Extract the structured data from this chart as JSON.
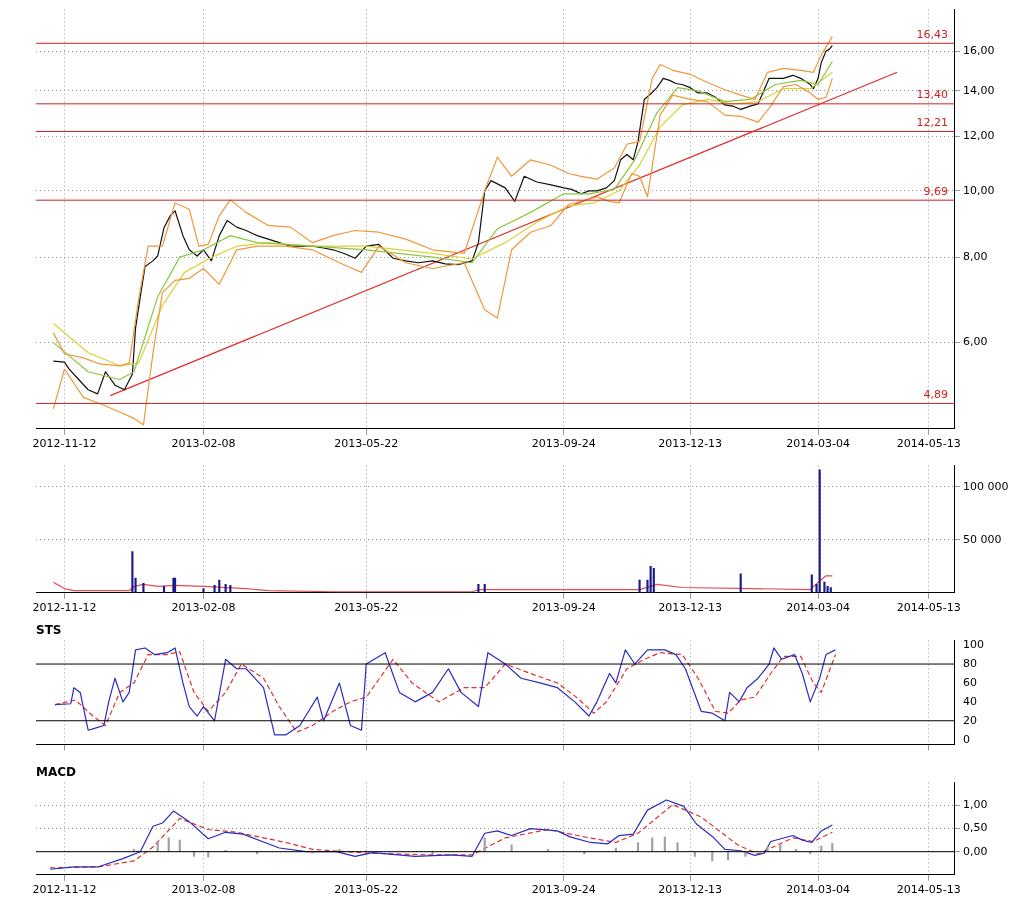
{
  "chart_data": [
    {
      "type": "line",
      "log": "y",
      "grid": true,
      "xlim": [
        "2012-10-25",
        "2014-05-29"
      ],
      "ylim": [
        4.49,
        18.4
      ],
      "xticks": [
        "2012-11-12",
        "2013-02-08",
        "2013-05-22",
        "2013-09-24",
        "2013-12-13",
        "2014-03-04",
        "2014-05-13"
      ],
      "yticks": [
        {
          "value": 6,
          "label": "6,00"
        },
        {
          "value": 8,
          "label": "8,00"
        },
        {
          "value": 10,
          "label": "10,00"
        },
        {
          "value": 12,
          "label": "12,00"
        },
        {
          "value": 14,
          "label": "14,00"
        },
        {
          "value": 16,
          "label": "16,00"
        }
      ],
      "ref_lines": [
        {
          "axis": "y",
          "value": 16.43,
          "label": "16,43",
          "color": "#cc2222"
        },
        {
          "axis": "y",
          "value": 13.4,
          "label": "13,40",
          "color": "#cc2222"
        },
        {
          "axis": "y",
          "value": 12.21,
          "label": "12,21",
          "color": "#cc2222"
        },
        {
          "axis": "y",
          "value": 9.69,
          "label": "9,69",
          "color": "#cc2222"
        },
        {
          "axis": "y",
          "value": 4.89,
          "label": "4,89",
          "color": "#cc2222"
        }
      ],
      "series": [
        {
          "color": "#f0973a",
          "x": [
            "2012-11-05",
            "2012-11-12",
            "2012-11-24",
            "2012-12-05",
            "2012-12-17",
            "2012-12-23",
            "2012-12-29",
            "2013-01-04",
            "2013-01-13",
            "2013-01-21",
            "2013-01-30",
            "2013-02-05",
            "2013-02-11",
            "2013-02-18",
            "2013-02-25",
            "2013-03-07",
            "2013-03-21",
            "2013-04-04",
            "2013-04-18",
            "2013-05-01",
            "2013-05-15",
            "2013-05-30",
            "2013-06-16",
            "2013-07-03",
            "2013-07-23",
            "2013-08-05",
            "2013-08-13",
            "2013-08-22",
            "2013-09-03",
            "2013-09-16",
            "2013-09-27",
            "2013-10-05",
            "2013-10-15",
            "2013-10-26",
            "2013-11-03",
            "2013-11-11",
            "2013-11-19",
            "2013-11-24",
            "2013-12-02",
            "2013-12-13",
            "2013-12-24",
            "2014-01-04",
            "2014-01-14",
            "2014-01-23",
            "2014-01-31",
            "2014-02-10",
            "2014-02-21",
            "2014-03-01",
            "2014-03-06",
            "2014-03-13"
          ],
          "values": [
            6.2,
            5.78,
            5.7,
            5.58,
            5.55,
            5.6,
            6.96,
            8.3,
            8.3,
            9.6,
            9.4,
            8.3,
            8.35,
            9.2,
            9.7,
            9.3,
            8.9,
            8.85,
            8.4,
            8.6,
            8.75,
            8.7,
            8.5,
            8.2,
            8.1,
            10.0,
            11.2,
            10.5,
            11.1,
            10.9,
            10.6,
            10.5,
            10.4,
            10.8,
            11.7,
            11.8,
            14.6,
            15.3,
            15.0,
            14.8,
            14.4,
            14.05,
            13.8,
            13.6,
            14.9,
            15.1,
            15.0,
            14.9,
            15.8,
            16.8
          ]
        },
        {
          "color": "#f0973a",
          "x": [
            "2012-11-05",
            "2012-11-12",
            "2012-11-24",
            "2012-12-05",
            "2012-12-17",
            "2012-12-26",
            "2013-01-01",
            "2013-01-07",
            "2013-01-13",
            "2013-01-21",
            "2013-01-30",
            "2013-02-08",
            "2013-02-18",
            "2013-03-01",
            "2013-03-14",
            "2013-04-01",
            "2013-04-18",
            "2013-05-05",
            "2013-05-19",
            "2013-05-30",
            "2013-06-16",
            "2013-07-03",
            "2013-07-23",
            "2013-08-05",
            "2013-08-13",
            "2013-08-22",
            "2013-09-03",
            "2013-09-16",
            "2013-09-27",
            "2013-10-05",
            "2013-10-15",
            "2013-10-23",
            "2013-10-29",
            "2013-11-06",
            "2013-11-11",
            "2013-11-16",
            "2013-11-24",
            "2013-12-02",
            "2013-12-13",
            "2013-12-24",
            "2014-01-04",
            "2014-01-14",
            "2014-01-25",
            "2014-02-02",
            "2014-02-10",
            "2014-02-18",
            "2014-02-27",
            "2014-03-04",
            "2014-03-09",
            "2014-03-13"
          ],
          "values": [
            4.8,
            5.49,
            4.99,
            4.88,
            4.75,
            4.65,
            4.55,
            5.78,
            7.1,
            7.4,
            7.45,
            7.7,
            7.3,
            8.2,
            8.3,
            8.3,
            8.2,
            7.85,
            7.6,
            8.3,
            7.85,
            7.7,
            7.85,
            6.7,
            6.52,
            8.2,
            8.7,
            8.9,
            9.55,
            9.65,
            9.8,
            9.65,
            9.6,
            10.6,
            10.5,
            9.8,
            12.9,
            13.8,
            13.6,
            13.5,
            12.9,
            12.85,
            12.6,
            13.3,
            14.2,
            14.3,
            13.9,
            13.6,
            13.7,
            14.6
          ]
        },
        {
          "color": "#8cc63f",
          "x": [
            "2012-11-05",
            "2012-11-27",
            "2012-12-17",
            "2012-12-26",
            "2013-01-10",
            "2013-01-24",
            "2013-02-08",
            "2013-02-25",
            "2013-03-14",
            "2013-04-18",
            "2013-05-22",
            "2013-07-03",
            "2013-07-28",
            "2013-08-13",
            "2013-09-03",
            "2013-09-24",
            "2013-10-10",
            "2013-10-26",
            "2013-11-08",
            "2013-11-22",
            "2013-12-05",
            "2013-12-18",
            "2014-01-04",
            "2014-01-20",
            "2014-02-05",
            "2014-02-21",
            "2014-03-04",
            "2014-03-13"
          ],
          "values": [
            6.0,
            5.44,
            5.3,
            5.44,
            7.0,
            8.0,
            8.2,
            8.6,
            8.4,
            8.3,
            8.2,
            8.0,
            7.85,
            8.8,
            9.3,
            9.9,
            9.9,
            10.05,
            11.1,
            13.0,
            14.15,
            14.0,
            13.5,
            13.6,
            14.3,
            14.5,
            14.3,
            15.45
          ]
        },
        {
          "color": "#d9d23a",
          "x": [
            "2012-11-05",
            "2012-11-27",
            "2012-12-17",
            "2012-12-29",
            "2013-01-13",
            "2013-01-27",
            "2013-02-11",
            "2013-03-01",
            "2013-03-21",
            "2013-04-18",
            "2013-05-22",
            "2013-07-03",
            "2013-07-28",
            "2013-08-18",
            "2013-09-07",
            "2013-09-27",
            "2013-10-13",
            "2013-10-29",
            "2013-11-11",
            "2013-11-24",
            "2013-12-08",
            "2013-12-24",
            "2014-01-09",
            "2014-01-25",
            "2014-02-10",
            "2014-02-27",
            "2014-03-13"
          ],
          "values": [
            6.4,
            5.8,
            5.55,
            5.6,
            6.8,
            7.6,
            7.95,
            8.3,
            8.4,
            8.3,
            8.3,
            8.1,
            7.95,
            8.4,
            9.0,
            9.5,
            9.6,
            10.0,
            10.9,
            12.4,
            13.35,
            13.6,
            13.4,
            13.5,
            14.1,
            14.1,
            14.9
          ]
        },
        {
          "color": "#111111",
          "x": [
            "2012-11-05",
            "2012-11-12",
            "2012-11-15",
            "2012-11-21",
            "2012-11-27",
            "2012-12-03",
            "2012-12-08",
            "2012-12-14",
            "2012-12-20",
            "2012-12-25",
            "2012-12-27",
            "2012-12-30",
            "2013-01-02",
            "2013-01-07",
            "2013-01-10",
            "2013-01-14",
            "2013-01-18",
            "2013-01-21",
            "2013-01-26",
            "2013-01-30",
            "2013-02-04",
            "2013-02-08",
            "2013-02-13",
            "2013-02-18",
            "2013-02-23",
            "2013-03-01",
            "2013-03-07",
            "2013-03-14",
            "2013-03-21",
            "2013-03-28",
            "2013-04-04",
            "2013-04-11",
            "2013-04-18",
            "2013-04-25",
            "2013-05-01",
            "2013-05-08",
            "2013-05-15",
            "2013-05-22",
            "2013-05-30",
            "2013-06-08",
            "2013-06-16",
            "2013-06-24",
            "2013-07-03",
            "2013-07-11",
            "2013-07-19",
            "2013-07-28",
            "2013-08-01",
            "2013-08-05",
            "2013-08-09",
            "2013-08-18",
            "2013-08-24",
            "2013-08-30",
            "2013-09-07",
            "2013-09-16",
            "2013-09-24",
            "2013-09-29",
            "2013-10-05",
            "2013-10-10",
            "2013-10-15",
            "2013-10-21",
            "2013-10-26",
            "2013-10-30",
            "2013-11-03",
            "2013-11-07",
            "2013-11-10",
            "2013-11-14",
            "2013-11-18",
            "2013-11-22",
            "2013-11-26",
            "2013-11-30",
            "2013-12-04",
            "2013-12-08",
            "2013-12-13",
            "2013-12-18",
            "2013-12-24",
            "2013-12-29",
            "2014-01-04",
            "2014-01-09",
            "2014-01-14",
            "2014-01-20",
            "2014-01-25",
            "2014-01-28",
            "2014-02-01",
            "2014-02-05",
            "2014-02-10",
            "2014-02-16",
            "2014-02-21",
            "2014-02-27",
            "2014-03-01",
            "2014-03-04",
            "2014-03-06",
            "2014-03-09",
            "2014-03-11",
            "2014-03-13"
          ],
          "values": [
            5.64,
            5.62,
            5.49,
            5.3,
            5.12,
            5.05,
            5.44,
            5.2,
            5.12,
            5.4,
            6.3,
            7.0,
            7.75,
            7.9,
            8.03,
            8.83,
            9.2,
            9.35,
            8.6,
            8.2,
            8.03,
            8.2,
            7.9,
            8.6,
            9.05,
            8.85,
            8.75,
            8.6,
            8.5,
            8.4,
            8.3,
            8.3,
            8.3,
            8.25,
            8.2,
            8.1,
            7.97,
            8.3,
            8.35,
            7.97,
            7.9,
            7.85,
            7.9,
            7.82,
            7.8,
            7.9,
            8.4,
            10.0,
            10.35,
            10.1,
            9.65,
            10.5,
            10.3,
            10.2,
            10.1,
            10.05,
            9.9,
            10.0,
            10.0,
            10.1,
            10.35,
            11.1,
            11.3,
            11.1,
            11.8,
            13.6,
            13.85,
            14.15,
            14.6,
            14.5,
            14.35,
            14.3,
            14.15,
            13.9,
            13.9,
            13.7,
            13.35,
            13.3,
            13.15,
            13.3,
            13.4,
            13.9,
            14.6,
            14.6,
            14.6,
            14.75,
            14.6,
            14.3,
            14.1,
            14.6,
            15.4,
            16.0,
            16.1,
            16.3
          ]
        },
        {
          "color": "#e03030",
          "x": [
            "2012-12-11",
            "2014-04-23"
          ],
          "values": [
            5.02,
            14.9
          ]
        }
      ]
    },
    {
      "type": "bar",
      "grid": true,
      "xlim": [
        "2012-10-25",
        "2014-05-29"
      ],
      "ylim": [
        0,
        120000
      ],
      "yticks": [
        {
          "value": 50000,
          "label": "50 000"
        },
        {
          "value": 100000,
          "label": "100 000"
        }
      ],
      "xticks": [
        "2012-11-12",
        "2013-02-08",
        "2013-05-22",
        "2013-09-24",
        "2013-12-13",
        "2014-03-04",
        "2014-05-13"
      ],
      "series": [
        {
          "color": "#1a1a8c",
          "x": [
            "2012-12-25",
            "2012-12-27",
            "2013-01-01",
            "2013-01-14",
            "2013-01-20",
            "2013-01-21",
            "2013-02-08",
            "2013-02-15",
            "2013-02-18",
            "2013-02-22",
            "2013-02-25",
            "2013-08-01",
            "2013-08-05",
            "2013-11-11",
            "2013-11-16",
            "2013-11-18",
            "2013-11-20",
            "2014-01-14",
            "2014-02-28",
            "2014-03-03",
            "2014-03-05",
            "2014-03-08",
            "2014-03-10",
            "2014-03-12"
          ],
          "values": [
            39000,
            14000,
            9000,
            6000,
            14000,
            14000,
            4000,
            7000,
            12000,
            8000,
            7000,
            8000,
            8000,
            12000,
            12000,
            25000,
            23000,
            18000,
            17000,
            8000,
            116000,
            10000,
            6000,
            5000
          ]
        },
        {
          "type": "line",
          "color": "#e05050",
          "x": [
            "2012-11-05",
            "2012-11-12",
            "2012-11-18",
            "2012-12-23",
            "2012-12-26",
            "2013-01-01",
            "2013-01-10",
            "2013-01-21",
            "2013-02-08",
            "2013-03-07",
            "2013-03-21",
            "2013-05-01",
            "2013-07-28",
            "2013-08-01",
            "2013-09-29",
            "2013-11-11",
            "2013-11-22",
            "2013-12-08",
            "2014-01-20",
            "2014-02-27",
            "2014-03-04",
            "2014-03-09",
            "2014-03-13"
          ],
          "values": [
            10000,
            4000,
            2000,
            2000,
            6000,
            8000,
            6000,
            7000,
            6000,
            4000,
            2000,
            1000,
            1000,
            3000,
            3000,
            3000,
            8000,
            5000,
            4000,
            3000,
            10000,
            16000,
            16000
          ]
        }
      ]
    },
    {
      "type": "line",
      "title": "STS",
      "grid": "x",
      "tick_labels": "y",
      "xlim": [
        "2012-10-25",
        "2014-05-29"
      ],
      "ylim": [
        -5,
        105
      ],
      "yticks": [
        0,
        20,
        40,
        60,
        80,
        100
      ],
      "xticks": [
        {
          "value": "2012-11-12",
          "label": null
        },
        {
          "value": "2013-02-08",
          "label": null
        },
        {
          "value": "2013-05-22",
          "label": null
        },
        {
          "value": "2013-09-24",
          "label": null
        },
        {
          "value": "2013-12-13",
          "label": null
        },
        {
          "value": "2014-03-04",
          "label": null
        },
        {
          "value": "2014-05-13",
          "label": null
        }
      ],
      "ref_lines": [
        {
          "axis": "y",
          "value": 20,
          "color": "#000000"
        },
        {
          "axis": "y",
          "value": 80,
          "color": "#000000"
        }
      ],
      "series": [
        {
          "color": "#2b2bbf",
          "x": [
            "2012-11-06",
            "2012-11-16",
            "2012-11-18",
            "2012-11-22",
            "2012-11-27",
            "2012-12-01",
            "2012-12-07",
            "2012-12-10",
            "2012-12-14",
            "2012-12-19",
            "2012-12-23",
            "2012-12-27",
            "2013-01-02",
            "2013-01-08",
            "2013-01-16",
            "2013-01-21",
            "2013-01-26",
            "2013-01-30",
            "2013-02-04",
            "2013-02-08",
            "2013-02-15",
            "2013-02-22",
            "2013-03-01",
            "2013-03-07",
            "2013-03-18",
            "2013-03-25",
            "2013-04-01",
            "2013-04-10",
            "2013-04-21",
            "2013-04-25",
            "2013-05-05",
            "2013-05-12",
            "2013-05-19",
            "2013-05-22",
            "2013-06-03",
            "2013-06-12",
            "2013-06-22",
            "2013-07-03",
            "2013-07-13",
            "2013-07-21",
            "2013-08-01",
            "2013-08-07",
            "2013-08-18",
            "2013-08-28",
            "2013-09-09",
            "2013-09-20",
            "2013-10-01",
            "2013-10-10",
            "2013-10-15",
            "2013-10-23",
            "2013-10-27",
            "2013-11-02",
            "2013-11-08",
            "2013-11-16",
            "2013-11-27",
            "2013-12-04",
            "2013-12-10",
            "2013-12-20",
            "2013-12-27",
            "2014-01-04",
            "2014-01-07",
            "2014-01-13",
            "2014-01-18",
            "2014-01-25",
            "2014-02-01",
            "2014-02-04",
            "2014-02-09",
            "2014-02-17",
            "2014-02-22",
            "2014-02-27",
            "2014-03-05",
            "2014-03-09",
            "2014-03-15"
          ],
          "values": [
            37,
            38,
            55,
            50,
            10,
            12,
            15,
            40,
            65,
            40,
            50,
            95,
            97,
            90,
            92,
            97,
            60,
            35,
            25,
            35,
            20,
            85,
            75,
            75,
            55,
            5,
            5,
            15,
            45,
            20,
            60,
            15,
            10,
            80,
            92,
            50,
            40,
            50,
            75,
            50,
            35,
            92,
            80,
            65,
            60,
            55,
            40,
            25,
            40,
            70,
            60,
            95,
            80,
            95,
            95,
            90,
            75,
            30,
            28,
            20,
            50,
            40,
            55,
            65,
            80,
            97,
            85,
            90,
            70,
            40,
            65,
            90,
            95
          ]
        },
        {
          "color": "#e03030",
          "line_style": "dashed",
          "x": [
            "2012-11-06",
            "2012-11-19",
            "2012-11-30",
            "2012-12-08",
            "2012-12-17",
            "2012-12-26",
            "2013-01-04",
            "2013-01-16",
            "2013-01-24",
            "2013-02-02",
            "2013-02-11",
            "2013-02-22",
            "2013-03-04",
            "2013-03-18",
            "2013-03-28",
            "2013-04-08",
            "2013-04-18",
            "2013-05-01",
            "2013-05-12",
            "2013-05-22",
            "2013-06-08",
            "2013-06-20",
            "2013-07-07",
            "2013-07-23",
            "2013-08-05",
            "2013-08-18",
            "2013-09-03",
            "2013-09-20",
            "2013-10-02",
            "2013-10-13",
            "2013-10-21",
            "2013-11-03",
            "2013-11-14",
            "2013-11-24",
            "2013-12-08",
            "2013-12-18",
            "2013-12-29",
            "2014-01-06",
            "2014-01-14",
            "2014-01-23",
            "2014-02-02",
            "2014-02-10",
            "2014-02-21",
            "2014-03-01",
            "2014-03-06",
            "2014-03-15"
          ],
          "values": [
            37,
            42,
            25,
            15,
            50,
            60,
            90,
            90,
            93,
            50,
            30,
            50,
            80,
            65,
            35,
            8,
            15,
            30,
            40,
            45,
            85,
            60,
            40,
            55,
            55,
            80,
            70,
            60,
            45,
            28,
            40,
            75,
            85,
            92,
            90,
            65,
            30,
            28,
            42,
            45,
            70,
            88,
            88,
            60,
            50,
            90
          ]
        }
      ]
    },
    {
      "type": "line",
      "title": "MACD",
      "grid": true,
      "xlim": [
        "2012-10-25",
        "2014-05-29"
      ],
      "ylim": [
        -0.5,
        1.5
      ],
      "yticks": [
        {
          "value": 0,
          "label": "0,00"
        },
        {
          "value": 0.5,
          "label": "0,50"
        },
        {
          "value": 1,
          "label": "1,00"
        }
      ],
      "xticks": [
        "2012-11-12",
        "2013-02-08",
        "2013-05-22",
        "2013-09-24",
        "2013-12-13",
        "2014-03-04",
        "2014-05-13"
      ],
      "ref_lines": [
        {
          "axis": "y",
          "value": 0,
          "color": "#000000"
        }
      ],
      "series": [
        {
          "type": "bar",
          "color": "#a0a0a0",
          "x": [
            "2012-12-26",
            "2013-01-10",
            "2013-01-17",
            "2013-01-24",
            "2013-02-02",
            "2013-02-11",
            "2013-02-22",
            "2013-03-14",
            "2013-04-18",
            "2013-05-05",
            "2013-05-22",
            "2013-07-03",
            "2013-08-05",
            "2013-08-22",
            "2013-09-14",
            "2013-10-07",
            "2013-10-27",
            "2013-11-10",
            "2013-11-19",
            "2013-11-27",
            "2013-12-05",
            "2013-12-16",
            "2013-12-27",
            "2014-01-06",
            "2014-01-17",
            "2014-01-31",
            "2014-02-08",
            "2014-02-18",
            "2014-02-27",
            "2014-03-06",
            "2014-03-13"
          ],
          "values": [
            0.05,
            0.2,
            0.3,
            0.25,
            -0.1,
            -0.12,
            0.03,
            -0.05,
            -0.03,
            0.05,
            0.02,
            -0.05,
            0.3,
            0.15,
            0.05,
            -0.05,
            0.08,
            0.2,
            0.3,
            0.32,
            0.2,
            -0.1,
            -0.2,
            -0.18,
            -0.1,
            0.1,
            0.15,
            0.05,
            -0.05,
            0.12,
            0.18
          ]
        },
        {
          "color": "#2b2bbf",
          "x": [
            "2012-11-03",
            "2012-11-18",
            "2012-12-03",
            "2012-12-19",
            "2012-12-30",
            "2013-01-07",
            "2013-01-13",
            "2013-01-20",
            "2013-01-30",
            "2013-02-11",
            "2013-02-22",
            "2013-03-05",
            "2013-03-28",
            "2013-04-14",
            "2013-05-03",
            "2013-05-15",
            "2013-05-26",
            "2013-06-22",
            "2013-07-15",
            "2013-07-28",
            "2013-08-05",
            "2013-08-13",
            "2013-08-22",
            "2013-09-03",
            "2013-09-20",
            "2013-09-28",
            "2013-10-11",
            "2013-10-22",
            "2013-10-29",
            "2013-11-07",
            "2013-11-16",
            "2013-11-28",
            "2013-12-09",
            "2013-12-17",
            "2013-12-28",
            "2014-01-04",
            "2014-01-14",
            "2014-01-23",
            "2014-01-29",
            "2014-02-02",
            "2014-02-16",
            "2014-02-22",
            "2014-02-28",
            "2014-03-06",
            "2014-03-13"
          ],
          "values": [
            -0.38,
            -0.33,
            -0.33,
            -0.15,
            0.0,
            0.55,
            0.62,
            0.88,
            0.65,
            0.28,
            0.42,
            0.38,
            0.08,
            0.0,
            0.0,
            -0.1,
            -0.02,
            -0.1,
            -0.07,
            -0.1,
            0.4,
            0.45,
            0.35,
            0.5,
            0.45,
            0.32,
            0.2,
            0.17,
            0.35,
            0.38,
            0.9,
            1.12,
            0.98,
            0.6,
            0.3,
            0.05,
            0.02,
            -0.08,
            -0.03,
            0.22,
            0.35,
            0.25,
            0.2,
            0.45,
            0.58
          ]
        },
        {
          "color": "#e03030",
          "line_style": "dashed",
          "x": [
            "2012-11-03",
            "2012-12-03",
            "2012-12-26",
            "2013-01-07",
            "2013-01-24",
            "2013-02-11",
            "2013-03-01",
            "2013-04-01",
            "2013-04-18",
            "2013-05-22",
            "2013-07-03",
            "2013-07-28",
            "2013-08-18",
            "2013-09-14",
            "2013-10-07",
            "2013-10-27",
            "2013-11-10",
            "2013-12-02",
            "2013-12-20",
            "2014-01-12",
            "2014-01-25",
            "2014-02-16",
            "2014-03-01",
            "2014-03-13"
          ],
          "values": [
            -0.35,
            -0.33,
            -0.2,
            0.1,
            0.72,
            0.48,
            0.42,
            0.2,
            0.05,
            -0.03,
            -0.07,
            -0.07,
            0.3,
            0.48,
            0.32,
            0.2,
            0.4,
            1.02,
            0.75,
            0.15,
            -0.05,
            0.3,
            0.22,
            0.42
          ]
        }
      ]
    }
  ]
}
